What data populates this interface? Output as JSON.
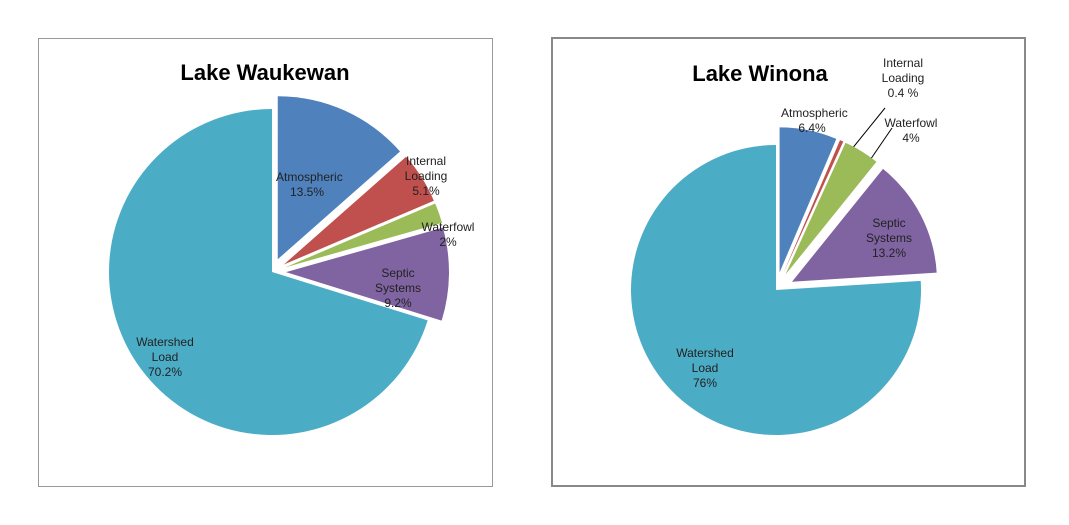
{
  "chart_data": [
    {
      "type": "pie",
      "title": "Lake Waukewan",
      "categories": [
        "Atmospheric",
        "Internal Loading",
        "Waterfowl",
        "Septic Systems",
        "Watershed Load"
      ],
      "values": [
        13.5,
        5.1,
        2,
        9.2,
        70.2
      ],
      "value_labels": [
        "13.5%",
        "5.1%",
        "2%",
        "9.2%",
        "70.2%"
      ],
      "colors": [
        "#4f81bd",
        "#c0504d",
        "#9bbb59",
        "#8064a2",
        "#4bacc6"
      ]
    },
    {
      "type": "pie",
      "title": "Lake Winona",
      "categories": [
        "Atmospheric",
        "Internal Loading",
        "Waterfowl",
        "Septic Systems",
        "Watershed Load"
      ],
      "values": [
        6.4,
        0.4,
        4,
        13.2,
        76
      ],
      "value_labels": [
        "6.4%",
        "0.4 %",
        "4%",
        "13.2%",
        "76%"
      ],
      "colors": [
        "#4f81bd",
        "#c0504d",
        "#9bbb59",
        "#8064a2",
        "#4bacc6"
      ]
    }
  ]
}
